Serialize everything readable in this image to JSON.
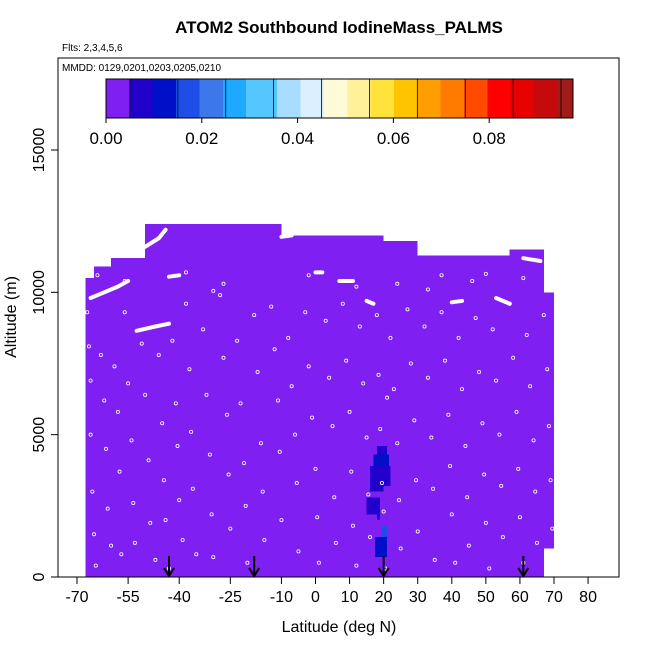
{
  "chart_data": {
    "type": "heatmap",
    "title": "ATOM2 Southbound IodineMass_PALMS",
    "flights_text": "Flts: 2,3,4,5,6",
    "dates_text": "MMDD: 0129,0201,0203,0205,0210",
    "xlabel": "Latitude (deg N)",
    "ylabel": "Altitude (m)",
    "xlim": [
      -70,
      80
    ],
    "ylim": [
      0,
      17500
    ],
    "x_ticks": [
      -70,
      -55,
      -40,
      -25,
      -10,
      0,
      10,
      20,
      30,
      40,
      50,
      60,
      70,
      80
    ],
    "x_tick_labels": [
      "-70",
      "-55",
      "-40",
      "-25",
      "-10",
      "0",
      "10",
      "20",
      "30",
      "40",
      "50",
      "60",
      "70",
      "80"
    ],
    "y_ticks": [
      0,
      5000,
      10000,
      15000
    ],
    "y_tick_labels": [
      "0",
      "5000",
      "10000",
      "15000"
    ],
    "colorbar": {
      "range": [
        0,
        0.0975
      ],
      "ticks": [
        0.0,
        0.02,
        0.04,
        0.06,
        0.08
      ],
      "tick_labels": [
        "0.00",
        "0.02",
        "0.04",
        "0.06",
        "0.08"
      ],
      "bin_width": 0.005,
      "colors": [
        "#7f1ff2",
        "#2200cc",
        "#0010c8",
        "#1f4ee6",
        "#3c78ea",
        "#1ea8ff",
        "#56c6ff",
        "#a9ddff",
        "#dcefff",
        "#fffad8",
        "#fff19a",
        "#ffe23a",
        "#ffc400",
        "#ff9e00",
        "#ff7b00",
        "#ff4a00",
        "#ff0000",
        "#e60000",
        "#c40a0a",
        "#a11b1b"
      ]
    },
    "background_value": 0.001,
    "background_color": "#7f1ff2",
    "coverage": [
      {
        "lat": [
          -67.5,
          -65
        ],
        "alt": [
          0,
          10500
        ]
      },
      {
        "lat": [
          -65,
          -60
        ],
        "alt": [
          0,
          10900
        ]
      },
      {
        "lat": [
          -60,
          -50
        ],
        "alt": [
          0,
          11200
        ]
      },
      {
        "lat": [
          -50,
          -40
        ],
        "alt": [
          0,
          12400
        ]
      },
      {
        "lat": [
          -40,
          -25
        ],
        "alt": [
          0,
          12400
        ]
      },
      {
        "lat": [
          -25,
          -10
        ],
        "alt": [
          0,
          12400
        ]
      },
      {
        "lat": [
          -10,
          0
        ],
        "alt": [
          0,
          12000
        ]
      },
      {
        "lat": [
          0,
          20
        ],
        "alt": [
          0,
          12000
        ]
      },
      {
        "lat": [
          20,
          30
        ],
        "alt": [
          0,
          11800
        ]
      },
      {
        "lat": [
          30,
          45
        ],
        "alt": [
          0,
          11300
        ]
      },
      {
        "lat": [
          45,
          57
        ],
        "alt": [
          0,
          11300
        ]
      },
      {
        "lat": [
          57,
          64
        ],
        "alt": [
          0,
          11500
        ]
      },
      {
        "lat": [
          64,
          67
        ],
        "alt": [
          0,
          11500
        ]
      },
      {
        "lat": [
          67,
          70
        ],
        "alt": [
          1000,
          10000
        ]
      }
    ],
    "enhanced_cells": [
      {
        "lat": [
          17,
          21.5
        ],
        "alt": [
          3900,
          4300
        ],
        "value": 0.011
      },
      {
        "lat": [
          18,
          21
        ],
        "alt": [
          4300,
          4600
        ],
        "value": 0.006
      },
      {
        "lat": [
          17.5,
          21
        ],
        "alt": [
          700,
          1400
        ],
        "value": 0.012
      },
      {
        "lat": [
          19.5,
          21
        ],
        "alt": [
          1400,
          1800
        ],
        "value": 0.015
      },
      {
        "lat": [
          16,
          22
        ],
        "alt": [
          3000,
          3900
        ],
        "value": 0.005
      },
      {
        "lat": [
          15,
          19
        ],
        "alt": [
          2000,
          2800
        ],
        "value": 0.005
      },
      {
        "lat": [
          12,
          18
        ],
        "alt": [
          1500,
          2200
        ],
        "value": 0.004
      },
      {
        "lat": [
          20,
          24
        ],
        "alt": [
          2200,
          3200
        ],
        "value": 0.004
      },
      {
        "lat": [
          50,
          58
        ],
        "alt": [
          2200,
          3300
        ],
        "value": 0.004
      },
      {
        "lat": [
          55,
          61
        ],
        "alt": [
          1000,
          2200
        ],
        "value": 0.004
      },
      {
        "lat": [
          58,
          62
        ],
        "alt": [
          3300,
          4200
        ],
        "value": 0.004
      },
      {
        "lat": [
          42,
          48
        ],
        "alt": [
          2800,
          3400
        ],
        "value": 0.004
      },
      {
        "lat": [
          22,
          30
        ],
        "alt": [
          9000,
          10400
        ],
        "value": 0.004
      },
      {
        "lat": [
          -60,
          -48
        ],
        "alt": [
          9000,
          10700
        ],
        "value": 0.004
      },
      {
        "lat": [
          -40,
          -30
        ],
        "alt": [
          9500,
          10600
        ],
        "value": 0.004
      },
      {
        "lat": [
          -10,
          5
        ],
        "alt": [
          9200,
          10200
        ],
        "value": 0.004
      },
      {
        "lat": [
          40,
          55
        ],
        "alt": [
          8800,
          10300
        ],
        "value": 0.004
      },
      {
        "lat": [
          58,
          65
        ],
        "alt": [
          9000,
          10800
        ],
        "value": 0.004
      },
      {
        "lat": [
          -35,
          -28
        ],
        "alt": [
          5500,
          7000
        ],
        "value": 0.004
      },
      {
        "lat": [
          -20,
          -12
        ],
        "alt": [
          4700,
          5800
        ],
        "value": 0.004
      },
      {
        "lat": [
          30,
          36
        ],
        "alt": [
          5800,
          6600
        ],
        "value": 0.004
      }
    ],
    "flight_tracks": [
      {
        "lat": [
          -66,
          -62,
          -58,
          -55
        ],
        "alt": [
          9800,
          10000,
          10200,
          10400
        ]
      },
      {
        "lat": [
          -52.5,
          -47,
          -43
        ],
        "alt": [
          8650,
          8800,
          8900
        ]
      },
      {
        "lat": [
          -50,
          -46,
          -44
        ],
        "alt": [
          11600,
          11900,
          12200
        ]
      },
      {
        "lat": [
          -43,
          -40
        ],
        "alt": [
          10550,
          10600
        ]
      },
      {
        "lat": [
          -10,
          -7
        ],
        "alt": [
          11950,
          12000
        ]
      },
      {
        "lat": [
          0,
          2
        ],
        "alt": [
          10700,
          10700
        ]
      },
      {
        "lat": [
          7,
          11
        ],
        "alt": [
          10400,
          10400
        ]
      },
      {
        "lat": [
          15,
          17
        ],
        "alt": [
          9700,
          9600
        ]
      },
      {
        "lat": [
          40,
          43
        ],
        "alt": [
          9650,
          9700
        ]
      },
      {
        "lat": [
          53,
          57
        ],
        "alt": [
          9800,
          9600
        ]
      },
      {
        "lat": [
          61,
          66
        ],
        "alt": [
          11200,
          11100
        ]
      }
    ],
    "sample_points": [
      [
        -67,
        9300
      ],
      [
        -66.5,
        8100
      ],
      [
        -66,
        6900
      ],
      [
        -66,
        5000
      ],
      [
        -65.5,
        3000
      ],
      [
        -65,
        1500
      ],
      [
        -64.5,
        400
      ],
      [
        -63,
        7800
      ],
      [
        -62,
        6200
      ],
      [
        -61.5,
        4500
      ],
      [
        -61,
        2400
      ],
      [
        -60,
        1100
      ],
      [
        -59,
        7400
      ],
      [
        -58,
        5800
      ],
      [
        -57.5,
        3700
      ],
      [
        -57,
        800
      ],
      [
        -56,
        9300
      ],
      [
        -55,
        6800
      ],
      [
        -54,
        4800
      ],
      [
        -53.5,
        2600
      ],
      [
        -53,
        1200
      ],
      [
        -51,
        8200
      ],
      [
        -50,
        6400
      ],
      [
        -49,
        4100
      ],
      [
        -48.5,
        1900
      ],
      [
        -47,
        600
      ],
      [
        -46,
        7800
      ],
      [
        -45,
        5400
      ],
      [
        -44.5,
        3400
      ],
      [
        -44,
        2000
      ],
      [
        -43,
        300
      ],
      [
        -42,
        8300
      ],
      [
        -41,
        6100
      ],
      [
        -40.5,
        4600
      ],
      [
        -40,
        2700
      ],
      [
        -39,
        1300
      ],
      [
        -38,
        9600
      ],
      [
        -37,
        7300
      ],
      [
        -36.5,
        5100
      ],
      [
        -36,
        3100
      ],
      [
        -35,
        800
      ],
      [
        -33,
        8700
      ],
      [
        -32,
        6400
      ],
      [
        -31,
        4300
      ],
      [
        -30.5,
        2200
      ],
      [
        -30,
        700
      ],
      [
        -28,
        9900
      ],
      [
        -27,
        7700
      ],
      [
        -26,
        5700
      ],
      [
        -25.5,
        3600
      ],
      [
        -25,
        1700
      ],
      [
        -23,
        8300
      ],
      [
        -22,
        6100
      ],
      [
        -21,
        4000
      ],
      [
        -20.5,
        2500
      ],
      [
        -20,
        500
      ],
      [
        -18,
        9200
      ],
      [
        -17,
        7200
      ],
      [
        -16,
        4700
      ],
      [
        -15.5,
        3000
      ],
      [
        -15,
        1300
      ],
      [
        -13,
        9500
      ],
      [
        -12,
        8000
      ],
      [
        -11,
        6200
      ],
      [
        -10.5,
        4400
      ],
      [
        -10,
        2000
      ],
      [
        -8,
        8400
      ],
      [
        -7,
        6700
      ],
      [
        -6,
        5000
      ],
      [
        -5.5,
        3300
      ],
      [
        -5,
        900
      ],
      [
        -3,
        9300
      ],
      [
        -2,
        7400
      ],
      [
        -1,
        5600
      ],
      [
        0,
        3800
      ],
      [
        0.5,
        2100
      ],
      [
        1,
        500
      ],
      [
        3,
        9000
      ],
      [
        4,
        7000
      ],
      [
        5,
        5300
      ],
      [
        5.5,
        2800
      ],
      [
        6,
        1200
      ],
      [
        8,
        9600
      ],
      [
        9,
        7600
      ],
      [
        10,
        5800
      ],
      [
        10.5,
        3700
      ],
      [
        11,
        1800
      ],
      [
        12,
        400
      ],
      [
        13,
        8800
      ],
      [
        14,
        6800
      ],
      [
        15,
        4900
      ],
      [
        15.5,
        2900
      ],
      [
        16,
        1400
      ],
      [
        18,
        9200
      ],
      [
        18.5,
        7100
      ],
      [
        19,
        5200
      ],
      [
        19.5,
        3300
      ],
      [
        20,
        2300
      ],
      [
        20.5,
        300
      ],
      [
        22,
        8400
      ],
      [
        23,
        6600
      ],
      [
        24,
        4700
      ],
      [
        24.5,
        2700
      ],
      [
        25,
        1000
      ],
      [
        27,
        9400
      ],
      [
        28,
        7500
      ],
      [
        29,
        5500
      ],
      [
        29.5,
        3400
      ],
      [
        30,
        1600
      ],
      [
        32,
        8800
      ],
      [
        33,
        7000
      ],
      [
        34,
        4900
      ],
      [
        34.5,
        3100
      ],
      [
        35,
        600
      ],
      [
        37,
        9300
      ],
      [
        38,
        7600
      ],
      [
        39,
        5700
      ],
      [
        39.5,
        3900
      ],
      [
        40,
        2200
      ],
      [
        41,
        500
      ],
      [
        42,
        8400
      ],
      [
        43,
        6600
      ],
      [
        44,
        4600
      ],
      [
        44.5,
        2800
      ],
      [
        45,
        1100
      ],
      [
        47,
        9100
      ],
      [
        48,
        7200
      ],
      [
        49,
        5400
      ],
      [
        49.5,
        3600
      ],
      [
        50,
        1900
      ],
      [
        51,
        300
      ],
      [
        52,
        8700
      ],
      [
        53,
        6900
      ],
      [
        54,
        5000
      ],
      [
        54.5,
        3200
      ],
      [
        55,
        1400
      ],
      [
        57,
        9600
      ],
      [
        58,
        7700
      ],
      [
        59,
        5800
      ],
      [
        59.5,
        3800
      ],
      [
        60,
        2100
      ],
      [
        61,
        500
      ],
      [
        62,
        8500
      ],
      [
        63,
        6700
      ],
      [
        64,
        4800
      ],
      [
        64.5,
        3000
      ],
      [
        65,
        1200
      ],
      [
        67,
        9200
      ],
      [
        68,
        7300
      ],
      [
        68.5,
        5300
      ],
      [
        69,
        3400
      ],
      [
        69.5,
        1700
      ],
      [
        -64,
        10600
      ],
      [
        -56,
        10400
      ],
      [
        -38,
        10700
      ],
      [
        -27,
        10300
      ],
      [
        -2,
        10600
      ],
      [
        12,
        10200
      ],
      [
        21,
        6300
      ],
      [
        33,
        10100
      ],
      [
        46,
        10400
      ],
      [
        61,
        10500
      ],
      [
        -30,
        10050
      ],
      [
        24,
        10300
      ],
      [
        37,
        10600
      ],
      [
        50,
        10650
      ]
    ],
    "arrows_lat": [
      -43,
      -18,
      20,
      61
    ]
  }
}
